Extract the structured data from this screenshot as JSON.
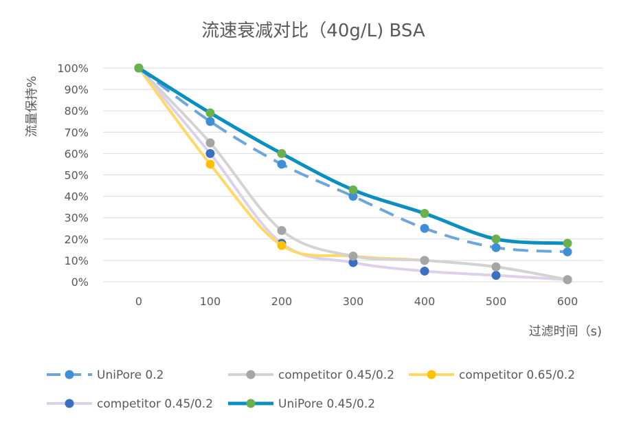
{
  "chart_data": {
    "type": "line",
    "title": "流速衰减对比（40g/L) BSA",
    "xlabel": "过滤时间（s)",
    "ylabel": "流量保持%",
    "x": [
      0,
      100,
      200,
      300,
      400,
      500,
      600
    ],
    "x_tick_labels": [
      "0",
      "100",
      "200",
      "300",
      "400",
      "500",
      "600"
    ],
    "ylim": [
      0,
      100
    ],
    "y_tick_labels": [
      "0%",
      "10%",
      "20%",
      "30%",
      "40%",
      "50%",
      "60%",
      "70%",
      "80%",
      "90%",
      "100%"
    ],
    "grid": true,
    "legend_position": "bottom",
    "series": [
      {
        "name": "UniPore 0.2",
        "values": [
          100,
          75,
          55,
          40,
          25,
          16,
          14
        ],
        "line_color": "#6ea6dc",
        "marker_color": "#3e8fd6",
        "dashed": true,
        "line_width": 4
      },
      {
        "name": "competitor 0.45/0.2",
        "values": [
          100,
          65,
          24,
          12,
          10,
          7,
          1
        ],
        "line_color": "#d3d3d3",
        "marker_color": "#a5a5a5",
        "dashed": false,
        "line_width": 4
      },
      {
        "name": "competitor 0.65/0.2",
        "values": [
          100,
          55,
          17,
          12,
          10,
          7,
          1
        ],
        "line_color": "#ffd966",
        "marker_color": "#ffc000",
        "dashed": false,
        "line_width": 4
      },
      {
        "name": "competitor 0.45/0.2",
        "values": [
          100,
          60,
          18,
          9,
          5,
          3,
          1
        ],
        "line_color": "#dcd0ea",
        "marker_color": "#3b6fc4",
        "dashed": false,
        "line_width": 4
      },
      {
        "name": "UniPore 0.45/0.2",
        "values": [
          100,
          79,
          60,
          43,
          32,
          20,
          18
        ],
        "line_color": "#0a8fc0",
        "marker_color": "#6ab04c",
        "dashed": false,
        "line_width": 5
      }
    ]
  }
}
